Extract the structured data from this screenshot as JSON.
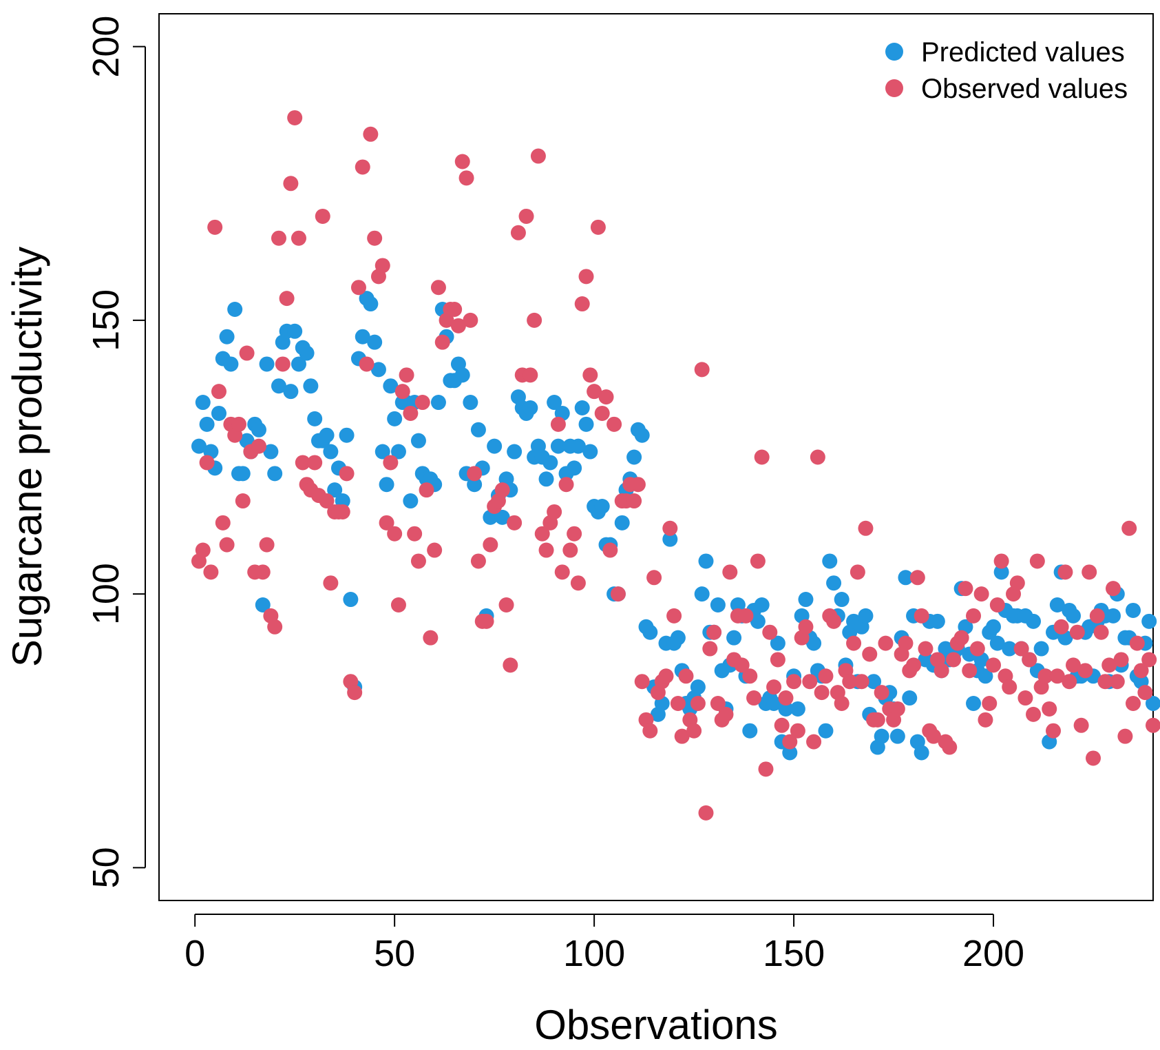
{
  "chart_data": {
    "type": "scatter",
    "title": "",
    "xlabel": "Observations",
    "ylabel": "Sugarcane productivity",
    "xlim": [
      -9,
      240
    ],
    "ylim": [
      44,
      206
    ],
    "xticks": [
      0,
      50,
      100,
      150,
      200
    ],
    "yticks": [
      50,
      100,
      150,
      200
    ],
    "xtick_labels": [
      "0",
      "50",
      "100",
      "150",
      "200"
    ],
    "ytick_labels": [
      "50",
      "100",
      "150",
      "200"
    ],
    "legend_position": "top-right",
    "series": [
      {
        "name": "Predicted values",
        "color": "#2196de",
        "values": [
          127,
          135,
          131,
          126,
          123,
          133,
          143,
          147,
          142,
          152,
          122,
          122,
          128,
          126,
          131,
          130,
          98,
          142,
          126,
          122,
          138,
          146,
          148,
          137,
          148,
          142,
          145,
          144,
          138,
          132,
          128,
          128,
          129,
          126,
          119,
          123,
          117,
          129,
          99,
          83,
          143,
          147,
          154,
          153,
          146,
          141,
          126,
          120,
          138,
          132,
          126,
          135,
          135,
          117,
          135,
          128,
          122,
          121,
          121,
          120,
          135,
          152,
          147,
          139,
          139,
          142,
          140,
          122,
          135,
          120,
          130,
          123,
          96,
          114,
          127,
          118,
          114,
          121,
          119,
          126,
          136,
          134,
          133,
          134,
          125,
          127,
          125,
          121,
          124,
          135,
          127,
          133,
          122,
          127,
          123,
          127,
          134,
          131,
          126,
          116,
          115,
          116,
          109,
          109,
          100,
          100,
          113,
          119,
          121,
          125,
          130,
          129,
          94,
          93,
          83,
          78,
          80,
          91,
          110,
          91,
          92,
          86,
          80,
          79,
          81,
          83,
          100,
          106,
          93,
          93,
          98,
          86,
          79,
          87,
          92,
          98,
          96,
          85,
          75,
          97,
          95,
          98,
          80,
          81,
          80,
          91,
          73,
          79,
          71,
          85,
          79,
          96,
          99,
          92,
          91,
          86,
          85,
          75,
          106,
          102,
          96,
          99,
          87,
          93,
          95,
          84,
          94,
          96,
          78,
          84,
          72,
          74,
          81,
          82,
          79,
          74,
          92,
          103,
          81,
          96,
          73,
          71,
          88,
          95,
          87,
          95,
          86,
          90,
          88,
          89,
          90,
          101,
          94,
          89,
          80,
          86,
          88,
          85,
          93,
          94,
          91,
          104,
          97,
          90,
          96,
          96,
          90,
          96,
          88,
          95,
          86,
          90,
          85,
          73,
          93,
          98,
          104,
          92,
          97,
          96,
          85,
          85,
          93,
          94,
          85,
          95,
          97,
          96,
          84,
          96,
          100,
          87,
          92,
          92,
          97,
          85,
          84,
          91,
          95,
          80
        ]
      },
      {
        "name": "Observed values",
        "color": "#df536b",
        "values": [
          106,
          108,
          124,
          104,
          167,
          137,
          113,
          109,
          131,
          129,
          131,
          117,
          144,
          126,
          104,
          127,
          104,
          109,
          96,
          94,
          165,
          142,
          154,
          175,
          187,
          165,
          124,
          120,
          119,
          124,
          118,
          169,
          117,
          102,
          115,
          115,
          115,
          122,
          84,
          82,
          156,
          178,
          142,
          184,
          165,
          158,
          160,
          113,
          124,
          111,
          98,
          137,
          140,
          133,
          111,
          106,
          135,
          119,
          92,
          108,
          156,
          146,
          150,
          152,
          152,
          149,
          179,
          176,
          150,
          122,
          106,
          95,
          95,
          109,
          116,
          117,
          119,
          98,
          87,
          113,
          166,
          140,
          169,
          140,
          150,
          180,
          111,
          108,
          113,
          115,
          131,
          104,
          120,
          108,
          111,
          102,
          153,
          158,
          140,
          137,
          167,
          133,
          136,
          108,
          131,
          100,
          117,
          117,
          120,
          117,
          120,
          84,
          77,
          75,
          103,
          82,
          84,
          85,
          112,
          96,
          80,
          74,
          85,
          77,
          75,
          80,
          141,
          60,
          90,
          93,
          80,
          77,
          78,
          104,
          88,
          96,
          87,
          96,
          85,
          81,
          106,
          125,
          68,
          93,
          83,
          88,
          76,
          81,
          73,
          84,
          75,
          92,
          94,
          84,
          73,
          125,
          82,
          85,
          96,
          95,
          82,
          80,
          86,
          84,
          91,
          104,
          84,
          112,
          89,
          77,
          77,
          82,
          91,
          79,
          77,
          79,
          89,
          91,
          86,
          87,
          103,
          96,
          90,
          75,
          74,
          88,
          86,
          73,
          72,
          88,
          91,
          92,
          101,
          86,
          96,
          90,
          100,
          77,
          80,
          87,
          98,
          106,
          85,
          83,
          100,
          102,
          90,
          81,
          88,
          78,
          106,
          83,
          85,
          79,
          75,
          85,
          94,
          104,
          84,
          87,
          93,
          76,
          86,
          104,
          70,
          96,
          93,
          84,
          87,
          101,
          84,
          88,
          74,
          112,
          80,
          91,
          86,
          82,
          88,
          76
        ]
      }
    ]
  }
}
